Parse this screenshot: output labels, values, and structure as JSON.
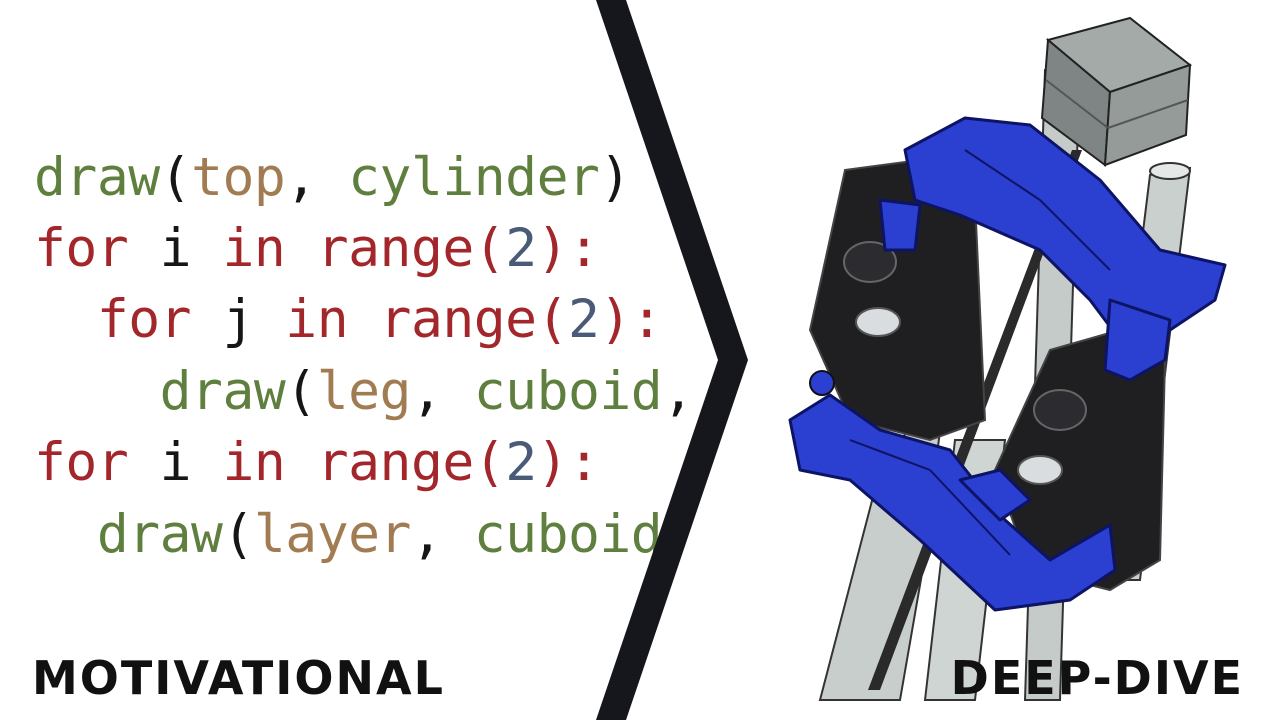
{
  "code": {
    "lines": [
      [
        {
          "t": "draw",
          "c": "fn"
        },
        {
          "t": "(",
          "c": "fnpar"
        },
        {
          "t": "top",
          "c": "arg"
        },
        {
          "t": ", ",
          "c": "punc"
        },
        {
          "t": "cylinder",
          "c": "fn"
        },
        {
          "t": ")",
          "c": "fnpar"
        }
      ],
      [
        {
          "t": "for",
          "c": "kw"
        },
        {
          "t": " i ",
          "c": "var"
        },
        {
          "t": "in",
          "c": "kw"
        },
        {
          "t": " ",
          "c": "var"
        },
        {
          "t": "range",
          "c": "kw"
        },
        {
          "t": "(",
          "c": "kw"
        },
        {
          "t": "2",
          "c": "num"
        },
        {
          "t": "):",
          "c": "kw"
        }
      ],
      [
        {
          "t": "  ",
          "c": "var"
        },
        {
          "t": "for",
          "c": "kw"
        },
        {
          "t": " j ",
          "c": "var"
        },
        {
          "t": "in",
          "c": "kw"
        },
        {
          "t": " ",
          "c": "var"
        },
        {
          "t": "range",
          "c": "kw"
        },
        {
          "t": "(",
          "c": "kw"
        },
        {
          "t": "2",
          "c": "num"
        },
        {
          "t": "):",
          "c": "kw"
        }
      ],
      [
        {
          "t": "    ",
          "c": "var"
        },
        {
          "t": "draw",
          "c": "fn"
        },
        {
          "t": "(",
          "c": "fnpar"
        },
        {
          "t": "leg",
          "c": "arg"
        },
        {
          "t": ", ",
          "c": "punc"
        },
        {
          "t": "cuboid",
          "c": "fn"
        },
        {
          "t": ",",
          "c": "punc"
        }
      ],
      [
        {
          "t": "for",
          "c": "kw"
        },
        {
          "t": " i ",
          "c": "var"
        },
        {
          "t": "in",
          "c": "kw"
        },
        {
          "t": " ",
          "c": "var"
        },
        {
          "t": "range",
          "c": "kw"
        },
        {
          "t": "(",
          "c": "kw"
        },
        {
          "t": "2",
          "c": "num"
        },
        {
          "t": "):",
          "c": "kw"
        }
      ],
      [
        {
          "t": "  ",
          "c": "var"
        },
        {
          "t": "draw",
          "c": "fn"
        },
        {
          "t": "(",
          "c": "fnpar"
        },
        {
          "t": "layer",
          "c": "arg"
        },
        {
          "t": ", ",
          "c": "punc"
        },
        {
          "t": "cuboid",
          "c": "fn"
        }
      ]
    ]
  },
  "labels": {
    "left": "MOTIVATIONAL",
    "right": "DEEP-DIVE"
  },
  "colors": {
    "keyword": "#a3262a",
    "function": "#5f7f3e",
    "argument": "#a17c53",
    "number": "#4a5b78",
    "divider": "#16161d",
    "model_blue": "#2b3fd1",
    "model_black": "#1f1f22",
    "rod_gray": "#c9d0cd",
    "motor_gray": "#8e9594"
  },
  "model": {
    "icon": "3d-cad-model-image"
  }
}
